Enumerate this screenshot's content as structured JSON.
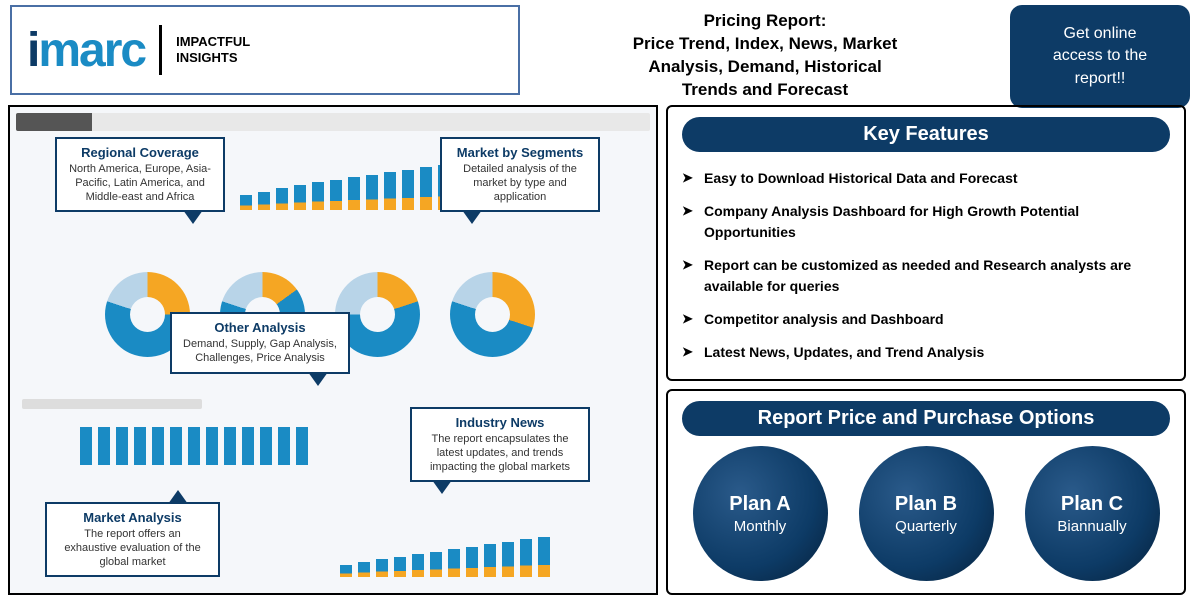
{
  "logo": {
    "text": "imarc",
    "tagline_line1": "IMPACTFUL",
    "tagline_line2": "INSIGHTS"
  },
  "header_title": {
    "line1": "Pricing Report:",
    "line2": "Price Trend, Index, News, Market",
    "line3": "Analysis, Demand, Historical",
    "line4": "Trends and Forecast"
  },
  "cta": "Get online access to the report!!",
  "callouts": {
    "regional": {
      "title": "Regional Coverage",
      "body": "North America, Europe, Asia-Pacific, Latin America, and Middle-east and Africa"
    },
    "segments": {
      "title": "Market by Segments",
      "body": "Detailed analysis of the market by type and application"
    },
    "other": {
      "title": "Other Analysis",
      "body": "Demand, Supply, Gap Analysis, Challenges, Price Analysis"
    },
    "industry": {
      "title": "Industry News",
      "body": "The report encapsulates the latest updates, and trends impacting the global markets"
    },
    "market": {
      "title": "Market Analysis",
      "body": "The report offers an exhaustive evaluation of the global market"
    }
  },
  "key_features": {
    "title": "Key Features",
    "items": [
      "Easy to Download Historical Data and Forecast",
      "Company Analysis Dashboard for High Growth Potential Opportunities",
      "Report can be customized as needed and Research analysts are available for queries",
      "Competitor analysis and Dashboard",
      "Latest News, Updates, and Trend Analysis"
    ]
  },
  "pricing": {
    "title": "Report Price and Purchase Options",
    "plans": [
      {
        "name": "Plan A",
        "period": "Monthly"
      },
      {
        "name": "Plan B",
        "period": "Quarterly"
      },
      {
        "name": "Plan C",
        "period": "Biannually"
      }
    ]
  },
  "colors": {
    "primary": "#0d3b66",
    "accent": "#1a8bc4",
    "highlight": "#f5a623",
    "bg": "#f5f7fa"
  },
  "bar_chart_top": {
    "heights": [
      15,
      18,
      22,
      25,
      28,
      30,
      33,
      35,
      38,
      40,
      43,
      45,
      48
    ],
    "count": 13
  },
  "donuts": [
    {
      "yellow_pct": 25,
      "blue_pct": 55,
      "light_pct": 20
    },
    {
      "yellow_pct": 15,
      "blue_pct": 65,
      "light_pct": 20
    },
    {
      "yellow_pct": 20,
      "blue_pct": 55,
      "light_pct": 25
    },
    {
      "yellow_pct": 30,
      "blue_pct": 50,
      "light_pct": 20
    }
  ],
  "bar_chart_mid": {
    "heights": [
      38,
      38,
      38,
      38,
      38,
      38,
      38,
      38,
      38,
      38,
      38,
      38,
      38
    ],
    "count": 13
  },
  "bar_chart_bottom": {
    "heights": [
      12,
      15,
      18,
      20,
      23,
      25,
      28,
      30,
      33,
      35,
      38,
      40
    ],
    "count": 12
  }
}
